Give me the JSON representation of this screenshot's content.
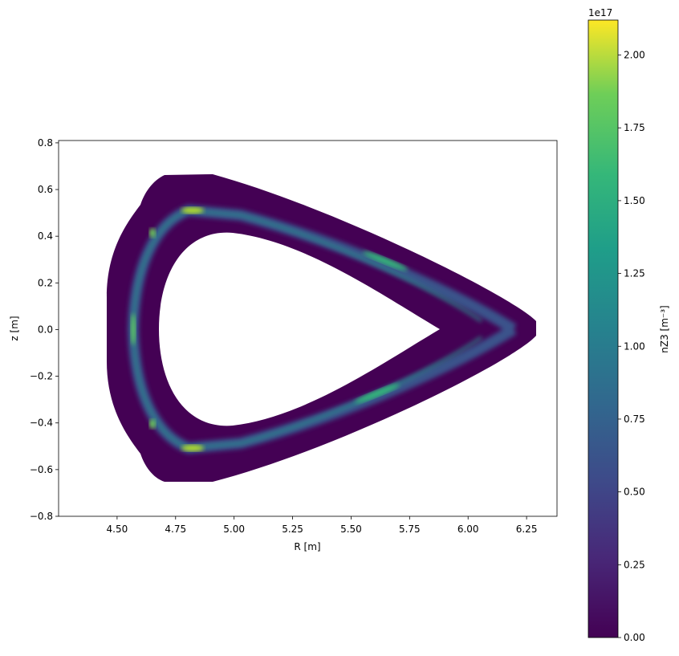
{
  "chart_data": {
    "type": "heatmap",
    "colormap": "viridis",
    "xlabel": "R [m]",
    "ylabel": "z [m]",
    "xlim": [
      4.25,
      6.38
    ],
    "ylim": [
      -0.8,
      0.81
    ],
    "xticks": [
      {
        "value": 4.5,
        "label": "4.50"
      },
      {
        "value": 4.75,
        "label": "4.75"
      },
      {
        "value": 5,
        "label": "5.00"
      },
      {
        "value": 5.25,
        "label": "5.25"
      },
      {
        "value": 5.5,
        "label": "5.50"
      },
      {
        "value": 5.75,
        "label": "5.75"
      },
      {
        "value": 6,
        "label": "6.00"
      },
      {
        "value": 6.25,
        "label": "6.25"
      }
    ],
    "yticks": [
      {
        "value": -0.8,
        "label": "−0.8"
      },
      {
        "value": -0.6,
        "label": "−0.6"
      },
      {
        "value": -0.4,
        "label": "−0.4"
      },
      {
        "value": -0.2,
        "label": "−0.2"
      },
      {
        "value": 0,
        "label": "0.0"
      },
      {
        "value": 0.2,
        "label": "0.2"
      },
      {
        "value": 0.4,
        "label": "0.4"
      },
      {
        "value": 0.6,
        "label": "0.6"
      },
      {
        "value": 0.8,
        "label": "0.8"
      }
    ],
    "colorbar": {
      "label": "nZ3 [m⁻³]",
      "offset_label": "1e17",
      "clim": [
        0,
        2.12e+17
      ],
      "ticks": [
        {
          "value": 0,
          "label": "0.00"
        },
        {
          "value": 2.5e+16,
          "label": "0.25"
        },
        {
          "value": 5e+16,
          "label": "0.50"
        },
        {
          "value": 7.5e+16,
          "label": "0.75"
        },
        {
          "value": 1e+17,
          "label": "1.00"
        },
        {
          "value": 1.25e+17,
          "label": "1.25"
        },
        {
          "value": 1.5e+17,
          "label": "1.50"
        },
        {
          "value": 1.75e+17,
          "label": "1.75"
        },
        {
          "value": 2e+17,
          "label": "2.00"
        }
      ]
    }
  }
}
